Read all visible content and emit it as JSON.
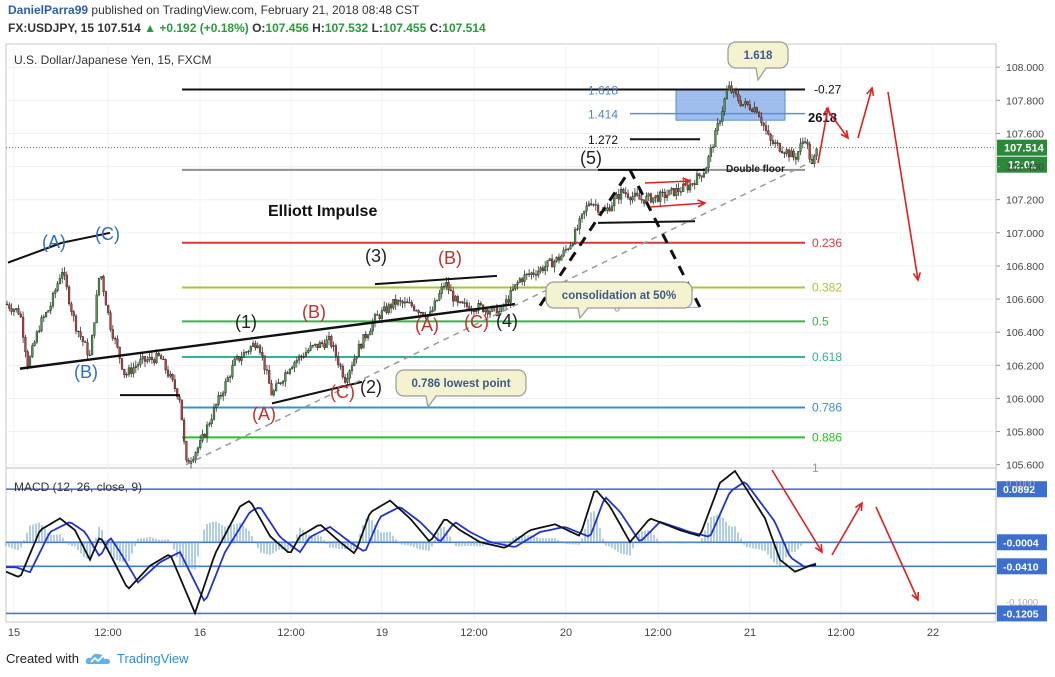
{
  "header": {
    "author": "DanielParra99",
    "published": " published on TradingView.com, February 21, 2018 08:48 CST",
    "symbol": "FX:USDJPY, 15",
    "last": "107.514",
    "change": "▲ +0.192 (+0.18%)",
    "o_label": "O:",
    "o": "107.456",
    "h_label": "H:",
    "h": "107.532",
    "l_label": "L:",
    "l": "107.455",
    "c_label": "C:",
    "c": "107.514"
  },
  "footer": {
    "created": "Created with",
    "brand": "TradingView",
    "logo_icon": "tradingview-cloud-icon"
  },
  "chart_data": [
    {
      "type": "candlestick",
      "title": "U.S. Dollar/Japanese Yen, 15, FXCM",
      "annotation_title": "Elliott Impulse",
      "ylim": [
        105.58,
        108.14
      ],
      "y_ticks": [
        "108.000",
        "107.800",
        "107.600",
        "107.400",
        "107.200",
        "107.000",
        "106.800",
        "106.600",
        "106.400",
        "106.200",
        "106.000",
        "105.800",
        "105.600"
      ],
      "x_ticks": [
        "15",
        "12:00",
        "16",
        "12:00",
        "19",
        "12:00",
        "20",
        "12:00",
        "21",
        "12:00",
        "22"
      ],
      "price_label": "107.514",
      "timer_label": "12:01",
      "fib_levels": [
        {
          "label": "0.236",
          "value": 106.94,
          "color": "#d23c3c"
        },
        {
          "label": "0.382",
          "value": 106.67,
          "color": "#a6c634"
        },
        {
          "label": "0.5",
          "value": 106.465,
          "color": "#3ab34a"
        },
        {
          "label": "0.618",
          "value": 106.25,
          "color": "#2fb39a"
        },
        {
          "label": "0.786",
          "value": 105.945,
          "color": "#3a8fcf"
        },
        {
          "label": "0.886",
          "value": 105.765,
          "color": "#22c422"
        },
        {
          "label": "1",
          "value": 105.58,
          "color": "#999999"
        }
      ],
      "ext_levels": [
        {
          "label": "-0.27",
          "value": 107.865,
          "color": "#111111"
        },
        {
          "label": "1.618",
          "value": 107.865,
          "color": "#4a86d0"
        },
        {
          "label": "1.414",
          "value": 107.72,
          "color": "#4a86d0"
        },
        {
          "label": "1.272",
          "value": 107.565,
          "color": "#111111"
        },
        {
          "label": "2618",
          "value": 107.7,
          "color": "#111111"
        }
      ],
      "wave_labels": [
        {
          "text": "(A)",
          "color": "#2f6fc6"
        },
        {
          "text": "(C)",
          "color": "#2f6fc6"
        },
        {
          "text": "(B)",
          "color": "#2f6fc6"
        },
        {
          "text": "(1)",
          "color": "#222222"
        },
        {
          "text": "(A)",
          "color": "#c23030"
        },
        {
          "text": "(B)",
          "color": "#c23030"
        },
        {
          "text": "(C)",
          "color": "#c23030"
        },
        {
          "text": "(2)",
          "color": "#222222"
        },
        {
          "text": "(3)",
          "color": "#222222"
        },
        {
          "text": "(B)",
          "color": "#c23030"
        },
        {
          "text": "(A)",
          "color": "#c23030"
        },
        {
          "text": "(C)",
          "color": "#c23030"
        },
        {
          "text": "(4)",
          "color": "#222222"
        },
        {
          "text": "(5)",
          "color": "#222222"
        }
      ],
      "callouts": [
        "1.618",
        "consolidation at 50%",
        "0.786 lowest point",
        "Double floor"
      ],
      "zero_label": "0",
      "key_points": [
        {
          "x": "15",
          "y": 106.55
        },
        {
          "x": "15",
          "y": 106.78
        },
        {
          "x": "15",
          "y": 106.25
        },
        {
          "x": "16",
          "y": 105.59
        },
        {
          "x": "16",
          "y": 106.38
        },
        {
          "x": "16",
          "y": 106.02
        },
        {
          "x": "19",
          "y": 106.58
        },
        {
          "x": "19",
          "y": 106.48
        },
        {
          "x": "20",
          "y": 107.2
        },
        {
          "x": "20",
          "y": 107.35
        },
        {
          "x": "21",
          "y": 107.88
        },
        {
          "x": "21",
          "y": 107.52
        }
      ]
    },
    {
      "type": "line",
      "title": "MACD (12, 26, close, 9)",
      "ylim": [
        -0.135,
        0.125
      ],
      "level_labels": [
        "0.0892",
        "-0.0004",
        "-0.0410",
        "-0.1205"
      ],
      "level_values": [
        0.0892,
        -0.0004,
        -0.041,
        -0.1205
      ],
      "faint_ticks": [
        "0.1000",
        "-0.1000"
      ],
      "series": [
        {
          "name": "MACD",
          "color": "#111111"
        },
        {
          "name": "Signal",
          "color": "#2233cc"
        }
      ]
    }
  ]
}
